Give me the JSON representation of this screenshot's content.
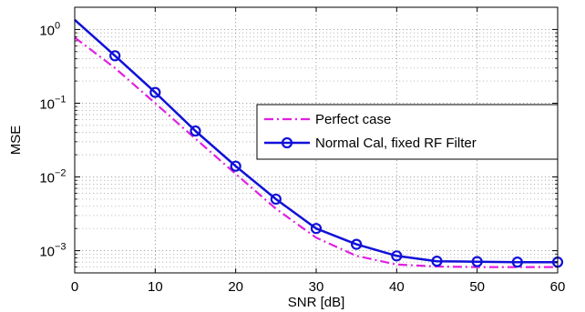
{
  "chart_data": {
    "type": "line",
    "xlabel": "SNR [dB]",
    "ylabel": "MSE",
    "xlim": [
      0,
      60
    ],
    "ylim": [
      0.0005,
      2
    ],
    "yscale": "log",
    "grid": true,
    "legend_position": "center-right",
    "x_ticks": [
      0,
      10,
      20,
      30,
      40,
      50,
      60
    ],
    "x_tick_labels": [
      "0",
      "10",
      "20",
      "30",
      "40",
      "50",
      "60"
    ],
    "y_ticks": [
      0.001,
      0.01,
      0.1,
      1
    ],
    "y_tick_labels": [
      {
        "base": "10",
        "exp": "−3"
      },
      {
        "base": "10",
        "exp": "−2"
      },
      {
        "base": "10",
        "exp": "−1"
      },
      {
        "base": "10",
        "exp": "0"
      }
    ],
    "series": [
      {
        "name": "Perfect case",
        "color": "#e020e0",
        "style": "dash-dot",
        "marker": "none",
        "x": [
          0,
          5,
          10,
          15,
          20,
          25,
          30,
          35,
          40,
          45,
          50,
          55,
          60
        ],
        "y": [
          0.78,
          0.3,
          0.1,
          0.033,
          0.011,
          0.0037,
          0.0015,
          0.00085,
          0.00065,
          0.00061,
          0.0006,
          0.0006,
          0.0006
        ]
      },
      {
        "name": "Normal Cal, fixed RF Filter",
        "color": "#1010d8",
        "style": "solid",
        "marker": "circle",
        "x": [
          0,
          5,
          10,
          15,
          20,
          25,
          30,
          35,
          40,
          45,
          50,
          55,
          60
        ],
        "y": [
          1.35,
          0.44,
          0.14,
          0.042,
          0.014,
          0.005,
          0.002,
          0.00122,
          0.00085,
          0.00072,
          0.00071,
          0.0007,
          0.0007
        ],
        "marker_x": [
          5,
          10,
          15,
          20,
          25,
          30,
          35,
          40,
          45,
          50,
          55,
          60
        ]
      }
    ]
  }
}
